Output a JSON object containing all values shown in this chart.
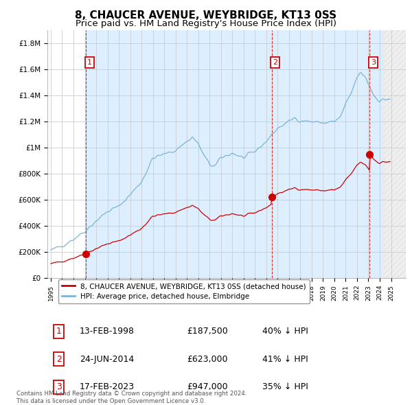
{
  "title": "8, CHAUCER AVENUE, WEYBRIDGE, KT13 0SS",
  "subtitle": "Price paid vs. HM Land Registry's House Price Index (HPI)",
  "title_fontsize": 11,
  "subtitle_fontsize": 9.5,
  "ylim": [
    0,
    1900000
  ],
  "yticks": [
    0,
    200000,
    400000,
    600000,
    800000,
    1000000,
    1200000,
    1400000,
    1600000,
    1800000
  ],
  "ytick_labels": [
    "£0",
    "£200K",
    "£400K",
    "£600K",
    "£800K",
    "£1M",
    "£1.2M",
    "£1.4M",
    "£1.6M",
    "£1.8M"
  ],
  "xlim_start": 1994.7,
  "xlim_end": 2026.3,
  "hpi_color": "#7ab4d8",
  "sale_color": "#cc0000",
  "dashed_line_color": "#cc0000",
  "background_color": "#ffffff",
  "grid_color": "#cccccc",
  "highlight_color": "#ddeeff",
  "hatch_color": "#cccccc",
  "legend_label_red": "8, CHAUCER AVENUE, WEYBRIDGE, KT13 0SS (detached house)",
  "legend_label_blue": "HPI: Average price, detached house, Elmbridge",
  "sale1_year": 1998.12,
  "sale2_year": 2014.47,
  "sale3_year": 2023.12,
  "sales": [
    {
      "num": 1,
      "year": 1998.12,
      "price": 187500,
      "label": "13-FEB-1998",
      "amount": "£187,500",
      "pct": "40% ↓ HPI"
    },
    {
      "num": 2,
      "year": 2014.47,
      "price": 623000,
      "label": "24-JUN-2014",
      "amount": "£623,000",
      "pct": "41% ↓ HPI"
    },
    {
      "num": 3,
      "year": 2023.12,
      "price": 947000,
      "label": "17-FEB-2023",
      "amount": "£947,000",
      "pct": "35% ↓ HPI"
    }
  ],
  "footnote": "Contains HM Land Registry data © Crown copyright and database right 2024.\nThis data is licensed under the Open Government Licence v3.0."
}
